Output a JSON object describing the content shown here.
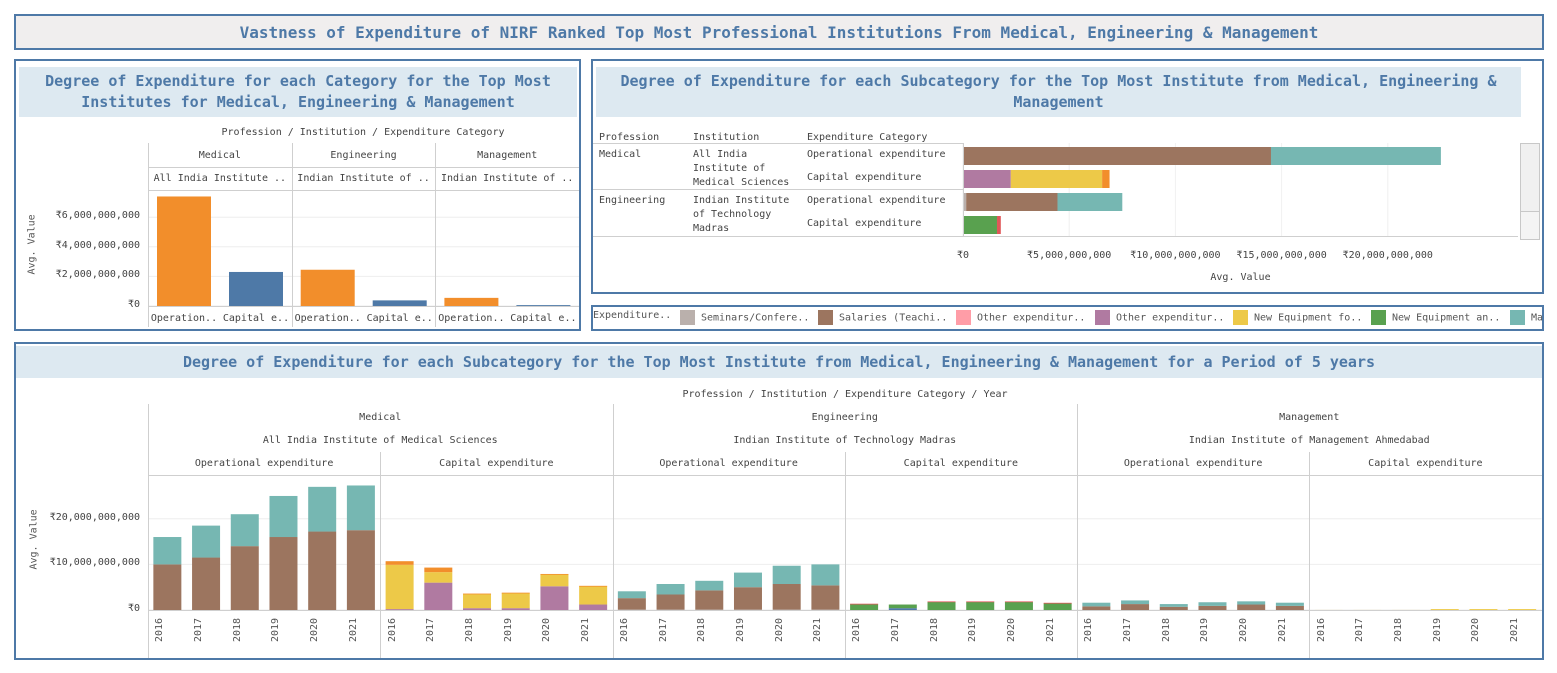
{
  "dashboard_title": "Vastness of Expenditure of NIRF Ranked Top Most Professional Institutions From Medical, Engineering & Management",
  "colors": {
    "seminars": "#bab0ac",
    "salaries": "#9c755f",
    "other_pink": "#ff9da7",
    "other_purple": "#b07aa1",
    "equip_yellow": "#edc948",
    "equip_green": "#59a14f",
    "maintenance": "#76b7b2",
    "orange": "#f28e2b",
    "blue": "#4e79a7",
    "red": "#e15759"
  },
  "legend": {
    "items": [
      {
        "label": "Expenditure..",
        "color": ""
      },
      {
        "label": "Seminars/Confere..",
        "color": "#bab0ac"
      },
      {
        "label": "Salaries (Teachi..",
        "color": "#9c755f"
      },
      {
        "label": "Other expenditur..",
        "color": "#ff9da7"
      },
      {
        "label": "Other expenditur..",
        "color": "#b07aa1"
      },
      {
        "label": "New Equipment fo..",
        "color": "#edc948"
      },
      {
        "label": "New Equipment an..",
        "color": "#59a14f"
      },
      {
        "label": "Ma",
        "color": "#76b7b2"
      }
    ]
  },
  "chart_data": [
    {
      "type": "bar",
      "title": "Degree of Expenditure for each Category for the Top Most Institutes for Medical, Engineering & Management",
      "header_path": "Profession  /  Institution  /  Expenditure Category",
      "professions": [
        "Medical",
        "Engineering",
        "Management"
      ],
      "institutions": [
        "All India Institute ..",
        "Indian Institute of ..",
        "Indian Institute of .."
      ],
      "categories": [
        "Operation..",
        "Capital e..",
        "Operation..",
        "Capital e..",
        "Operation..",
        "Capital e.."
      ],
      "values": [
        7400000000,
        2300000000,
        2450000000,
        380000000,
        550000000,
        60000000
      ],
      "bar_colors": [
        "#f28e2b",
        "#4e79a7",
        "#f28e2b",
        "#4e79a7",
        "#f28e2b",
        "#4e79a7"
      ],
      "ylabel": "Avg. Value",
      "ylim": [
        0,
        7500000000
      ],
      "yticks": [
        0,
        2000000000,
        4000000000,
        6000000000
      ],
      "ytick_labels": [
        "₹0",
        "₹2,000,000,000",
        "₹4,000,000,000",
        "₹6,000,000,000"
      ]
    },
    {
      "type": "bar",
      "orientation": "horizontal-stacked",
      "title": "Degree of Expenditure for each Subcategory for the Top Most Institute from Medical, Engineering & Management",
      "column_headers": [
        "Profession",
        "Institution",
        "Expenditure Category"
      ],
      "row_groups": [
        {
          "profession": "Medical",
          "institution": "All India Institute of Medical Sciences",
          "institution_lines": [
            "All India",
            "Institute of",
            "Medical Sciences"
          ]
        },
        {
          "profession": "Engineering",
          "institution": "Indian Institute of Technology Madras",
          "institution_lines": [
            "Indian Institute",
            "of Technology",
            "Madras"
          ]
        }
      ],
      "rows": [
        {
          "category": "Operational expenditure",
          "segments": [
            {
              "color": "#9c755f",
              "value": 14500000000
            },
            {
              "color": "#76b7b2",
              "value": 8000000000
            }
          ]
        },
        {
          "category": "Capital expenditure",
          "segments": [
            {
              "color": "#b07aa1",
              "value": 2250000000
            },
            {
              "color": "#edc948",
              "value": 4300000000
            },
            {
              "color": "#f28e2b",
              "value": 350000000
            }
          ]
        },
        {
          "category": "Operational expenditure",
          "segments": [
            {
              "color": "#bab0ac",
              "value": 150000000
            },
            {
              "color": "#9c755f",
              "value": 4300000000
            },
            {
              "color": "#76b7b2",
              "value": 3050000000
            }
          ]
        },
        {
          "category": "Capital expenditure",
          "segments": [
            {
              "color": "#59a14f",
              "value": 1600000000
            },
            {
              "color": "#e15759",
              "value": 180000000
            }
          ]
        }
      ],
      "xlabel": "Avg. Value",
      "xlim": [
        0,
        24500000000
      ],
      "xticks": [
        0,
        5000000000,
        10000000000,
        15000000000,
        20000000000
      ],
      "xtick_labels": [
        "₹0",
        "₹5,000,000,000",
        "₹10,000,000,000",
        "₹15,000,000,000",
        "₹20,000,000,000"
      ]
    },
    {
      "type": "bar",
      "orientation": "vertical-stacked",
      "title": "Degree of Expenditure for each Subcategory for the Top Most Institute from Medical, Engineering & Management for a Period of 5 years",
      "header_path": "Profession  /  Institution  /  Expenditure Category  /  Year",
      "groups": [
        {
          "profession": "Medical",
          "institution": "All India Institute of Medical Sciences"
        },
        {
          "profession": "Engineering",
          "institution": "Indian Institute of Technology Madras"
        },
        {
          "profession": "Management",
          "institution": "Indian Institute of Management Ahmedabad"
        }
      ],
      "expenditure_categories": [
        "Operational expenditure",
        "Capital expenditure"
      ],
      "years": [
        "2016",
        "2017",
        "2018",
        "2019",
        "2020",
        "2021"
      ],
      "ylabel": "Avg. Value",
      "ylim": [
        0,
        28500000000
      ],
      "yticks": [
        0,
        10000000000,
        20000000000
      ],
      "ytick_labels": [
        "₹0",
        "₹10,000,000,000",
        "₹20,000,000,000"
      ],
      "panes": [
        {
          "bars": [
            [
              {
                "color": "#9c755f",
                "value": 10000000000
              },
              {
                "color": "#76b7b2",
                "value": 6000000000
              }
            ],
            [
              {
                "color": "#9c755f",
                "value": 11500000000
              },
              {
                "color": "#76b7b2",
                "value": 7000000000
              }
            ],
            [
              {
                "color": "#9c755f",
                "value": 14000000000
              },
              {
                "color": "#76b7b2",
                "value": 7000000000
              }
            ],
            [
              {
                "color": "#9c755f",
                "value": 16000000000
              },
              {
                "color": "#76b7b2",
                "value": 9000000000
              }
            ],
            [
              {
                "color": "#9c755f",
                "value": 17200000000
              },
              {
                "color": "#76b7b2",
                "value": 9800000000
              }
            ],
            [
              {
                "color": "#9c755f",
                "value": 17500000000
              },
              {
                "color": "#76b7b2",
                "value": 9800000000
              }
            ]
          ]
        },
        {
          "bars": [
            [
              {
                "color": "#b07aa1",
                "value": 200000000
              },
              {
                "color": "#edc948",
                "value": 9700000000
              },
              {
                "color": "#f28e2b",
                "value": 800000000
              }
            ],
            [
              {
                "color": "#b07aa1",
                "value": 6000000000
              },
              {
                "color": "#edc948",
                "value": 2300000000
              },
              {
                "color": "#f28e2b",
                "value": 1000000000
              }
            ],
            [
              {
                "color": "#b07aa1",
                "value": 400000000
              },
              {
                "color": "#edc948",
                "value": 3100000000
              },
              {
                "color": "#f28e2b",
                "value": 100000000
              }
            ],
            [
              {
                "color": "#b07aa1",
                "value": 400000000
              },
              {
                "color": "#edc948",
                "value": 3300000000
              },
              {
                "color": "#f28e2b",
                "value": 100000000
              }
            ],
            [
              {
                "color": "#b07aa1",
                "value": 5200000000
              },
              {
                "color": "#edc948",
                "value": 2600000000
              },
              {
                "color": "#f28e2b",
                "value": 100000000
              }
            ],
            [
              {
                "color": "#b07aa1",
                "value": 1200000000
              },
              {
                "color": "#edc948",
                "value": 4000000000
              },
              {
                "color": "#f28e2b",
                "value": 100000000
              }
            ]
          ]
        },
        {
          "bars": [
            [
              {
                "color": "#bab0ac",
                "value": 100000000
              },
              {
                "color": "#9c755f",
                "value": 2500000000
              },
              {
                "color": "#76b7b2",
                "value": 1500000000
              }
            ],
            [
              {
                "color": "#bab0ac",
                "value": 100000000
              },
              {
                "color": "#9c755f",
                "value": 3300000000
              },
              {
                "color": "#76b7b2",
                "value": 2300000000
              }
            ],
            [
              {
                "color": "#bab0ac",
                "value": 100000000
              },
              {
                "color": "#9c755f",
                "value": 4200000000
              },
              {
                "color": "#76b7b2",
                "value": 2100000000
              }
            ],
            [
              {
                "color": "#bab0ac",
                "value": 100000000
              },
              {
                "color": "#9c755f",
                "value": 4900000000
              },
              {
                "color": "#76b7b2",
                "value": 3200000000
              }
            ],
            [
              {
                "color": "#bab0ac",
                "value": 100000000
              },
              {
                "color": "#9c755f",
                "value": 5600000000
              },
              {
                "color": "#76b7b2",
                "value": 4000000000
              }
            ],
            [
              {
                "color": "#bab0ac",
                "value": 100000000
              },
              {
                "color": "#9c755f",
                "value": 5300000000
              },
              {
                "color": "#76b7b2",
                "value": 4600000000
              }
            ]
          ]
        },
        {
          "bars": [
            [
              {
                "color": "#59a14f",
                "value": 1300000000
              },
              {
                "color": "#e15759",
                "value": 80000000
              }
            ],
            [
              {
                "color": "#4e79a7",
                "value": 400000000
              },
              {
                "color": "#59a14f",
                "value": 800000000
              }
            ],
            [
              {
                "color": "#59a14f",
                "value": 1800000000
              },
              {
                "color": "#e15759",
                "value": 80000000
              }
            ],
            [
              {
                "color": "#59a14f",
                "value": 1800000000
              },
              {
                "color": "#e15759",
                "value": 80000000
              }
            ],
            [
              {
                "color": "#59a14f",
                "value": 1800000000
              },
              {
                "color": "#e15759",
                "value": 80000000
              }
            ],
            [
              {
                "color": "#59a14f",
                "value": 1500000000
              },
              {
                "color": "#e15759",
                "value": 80000000
              }
            ]
          ]
        },
        {
          "bars": [
            [
              {
                "color": "#9c755f",
                "value": 800000000
              },
              {
                "color": "#76b7b2",
                "value": 800000000
              }
            ],
            [
              {
                "color": "#9c755f",
                "value": 1300000000
              },
              {
                "color": "#76b7b2",
                "value": 800000000
              }
            ],
            [
              {
                "color": "#9c755f",
                "value": 700000000
              },
              {
                "color": "#76b7b2",
                "value": 600000000
              }
            ],
            [
              {
                "color": "#9c755f",
                "value": 900000000
              },
              {
                "color": "#76b7b2",
                "value": 800000000
              }
            ],
            [
              {
                "color": "#9c755f",
                "value": 1200000000
              },
              {
                "color": "#76b7b2",
                "value": 700000000
              }
            ],
            [
              {
                "color": "#9c755f",
                "value": 900000000
              },
              {
                "color": "#76b7b2",
                "value": 700000000
              }
            ]
          ]
        },
        {
          "bars": [
            [
              {
                "color": "#edc948",
                "value": 10000000
              }
            ],
            [
              {
                "color": "#edc948",
                "value": 10000000
              }
            ],
            [
              {
                "color": "#edc948",
                "value": 10000000
              }
            ],
            [
              {
                "color": "#edc948",
                "value": 200000000
              }
            ],
            [
              {
                "color": "#edc948",
                "value": 200000000
              }
            ],
            [
              {
                "color": "#edc948",
                "value": 200000000
              }
            ]
          ]
        }
      ]
    }
  ]
}
